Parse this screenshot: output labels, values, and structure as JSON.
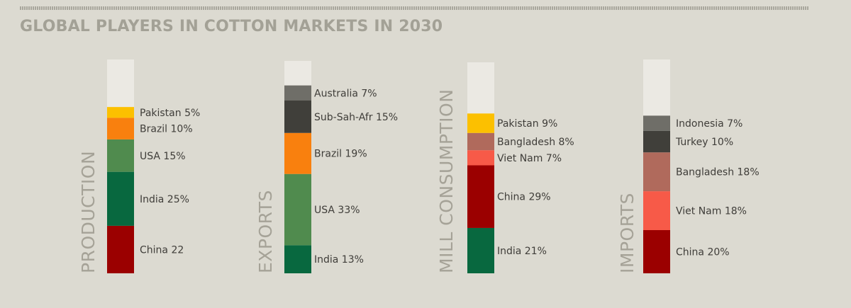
{
  "title": "GLOBAL PLAYERS IN COTTON MARKETS IN 2030",
  "chart_data": {
    "type": "bar",
    "stacked": true,
    "unit": "%",
    "title": "GLOBAL PLAYERS IN COTTON MARKETS IN 2030",
    "groups": [
      {
        "name": "PRODUCTION",
        "segments": [
          {
            "label": "China 22",
            "value": 22,
            "color": "#9b0000"
          },
          {
            "label": "India 25%",
            "value": 25,
            "color": "#08683f"
          },
          {
            "label": "USA 15%",
            "value": 15,
            "color": "#508b4e"
          },
          {
            "label": "Brazil 10%",
            "value": 10,
            "color": "#f9800e"
          },
          {
            "label": "Pakistan 5%",
            "value": 5,
            "color": "#fcc000"
          }
        ]
      },
      {
        "name": "EXPORTS",
        "segments": [
          {
            "label": "India 13%",
            "value": 13,
            "color": "#08683f"
          },
          {
            "label": "USA 33%",
            "value": 33,
            "color": "#508b4e"
          },
          {
            "label": "Brazil 19%",
            "value": 19,
            "color": "#f9800e"
          },
          {
            "label": "Sub-Sah-Afr 15%",
            "value": 15,
            "color": "#403f3a"
          },
          {
            "label": "Australia 7%",
            "value": 7,
            "color": "#6f6e68"
          }
        ]
      },
      {
        "name": "MILL CONSUMPTION",
        "segments": [
          {
            "label": "India 21%",
            "value": 21,
            "color": "#08683f"
          },
          {
            "label": "China 29%",
            "value": 29,
            "color": "#9b0000"
          },
          {
            "label": "Viet Nam 7%",
            "value": 7,
            "color": "#f75a48"
          },
          {
            "label": "Bangladesh 8%",
            "value": 8,
            "color": "#b06a5c"
          },
          {
            "label": "Pakistan 9%",
            "value": 9,
            "color": "#fcc000"
          }
        ]
      },
      {
        "name": "IMPORTS",
        "segments": [
          {
            "label": "China 20%",
            "value": 20,
            "color": "#9b0000"
          },
          {
            "label": "Viet Nam 18%",
            "value": 18,
            "color": "#f75a48"
          },
          {
            "label": "Bangladesh 18%",
            "value": 18,
            "color": "#b06a5c"
          },
          {
            "label": "Turkey 10%",
            "value": 10,
            "color": "#403f3a"
          },
          {
            "label": "Indonesia 7%",
            "value": 7,
            "color": "#6f6e68"
          }
        ]
      }
    ],
    "remainder_color": "#ebe9e3"
  }
}
